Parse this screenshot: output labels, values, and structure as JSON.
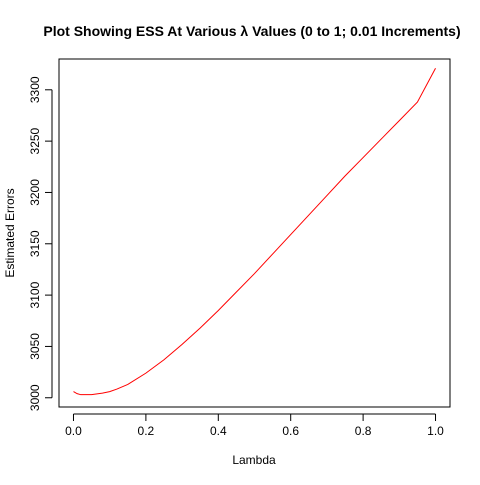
{
  "chart_data": {
    "type": "line",
    "title": "Plot Showing  ESS At Various λ Values (0 to 1; 0.01 Increments)",
    "xlabel": "Lambda",
    "ylabel": "Estimated Errors",
    "xlim": [
      -0.04,
      1.04
    ],
    "ylim": [
      2991,
      3330
    ],
    "x_ticks": [
      0.0,
      0.2,
      0.4,
      0.6,
      0.8,
      1.0
    ],
    "x_tick_labels": [
      "0.0",
      "0.2",
      "0.4",
      "0.6",
      "0.8",
      "1.0"
    ],
    "y_ticks": [
      3000,
      3050,
      3100,
      3150,
      3200,
      3250,
      3300
    ],
    "y_tick_labels": [
      "3000",
      "3050",
      "3100",
      "3150",
      "3200",
      "3250",
      "3300"
    ],
    "grid": false,
    "legend": "none",
    "series": [
      {
        "color": "#ff0000",
        "x": [
          0.0,
          0.01,
          0.02,
          0.03,
          0.04,
          0.05,
          0.06,
          0.08,
          0.1,
          0.12,
          0.15,
          0.2,
          0.25,
          0.3,
          0.35,
          0.4,
          0.45,
          0.5,
          0.55,
          0.6,
          0.65,
          0.7,
          0.75,
          0.8,
          0.85,
          0.9,
          0.95,
          1.0
        ],
        "y": [
          3006,
          3004,
          3003,
          3003,
          3003,
          3003,
          3003.5,
          3004.5,
          3006,
          3008.5,
          3013,
          3024,
          3037,
          3052,
          3068,
          3085,
          3103,
          3121,
          3140,
          3159,
          3178,
          3197,
          3216,
          3234,
          3252,
          3270,
          3288,
          3321
        ]
      }
    ]
  }
}
